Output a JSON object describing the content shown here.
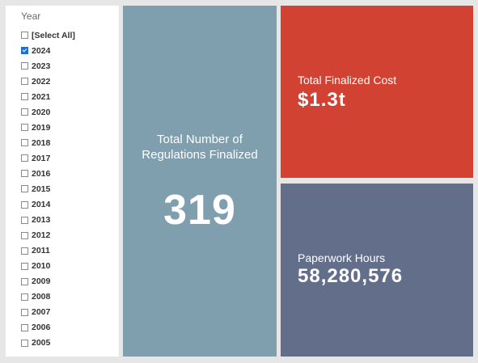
{
  "filter": {
    "title": "Year",
    "items": [
      {
        "label": "[Select All]",
        "checked": false
      },
      {
        "label": "2024",
        "checked": true
      },
      {
        "label": "2023",
        "checked": false
      },
      {
        "label": "2022",
        "checked": false
      },
      {
        "label": "2021",
        "checked": false
      },
      {
        "label": "2020",
        "checked": false
      },
      {
        "label": "2019",
        "checked": false
      },
      {
        "label": "2018",
        "checked": false
      },
      {
        "label": "2017",
        "checked": false
      },
      {
        "label": "2016",
        "checked": false
      },
      {
        "label": "2015",
        "checked": false
      },
      {
        "label": "2014",
        "checked": false
      },
      {
        "label": "2013",
        "checked": false
      },
      {
        "label": "2012",
        "checked": false
      },
      {
        "label": "2011",
        "checked": false
      },
      {
        "label": "2010",
        "checked": false
      },
      {
        "label": "2009",
        "checked": false
      },
      {
        "label": "2008",
        "checked": false
      },
      {
        "label": "2007",
        "checked": false
      },
      {
        "label": "2006",
        "checked": false
      },
      {
        "label": "2005",
        "checked": false
      }
    ]
  },
  "tiles": {
    "regulations": {
      "label": "Total Number of Regulations Finalized",
      "value": "319",
      "color": "#7f9eae"
    },
    "cost": {
      "label": "Total Finalized Cost",
      "value": "$1.3t",
      "color": "#d14232"
    },
    "hours": {
      "label": "Paperwork Hours",
      "value": "58,280,576",
      "color": "#636e8a"
    }
  }
}
